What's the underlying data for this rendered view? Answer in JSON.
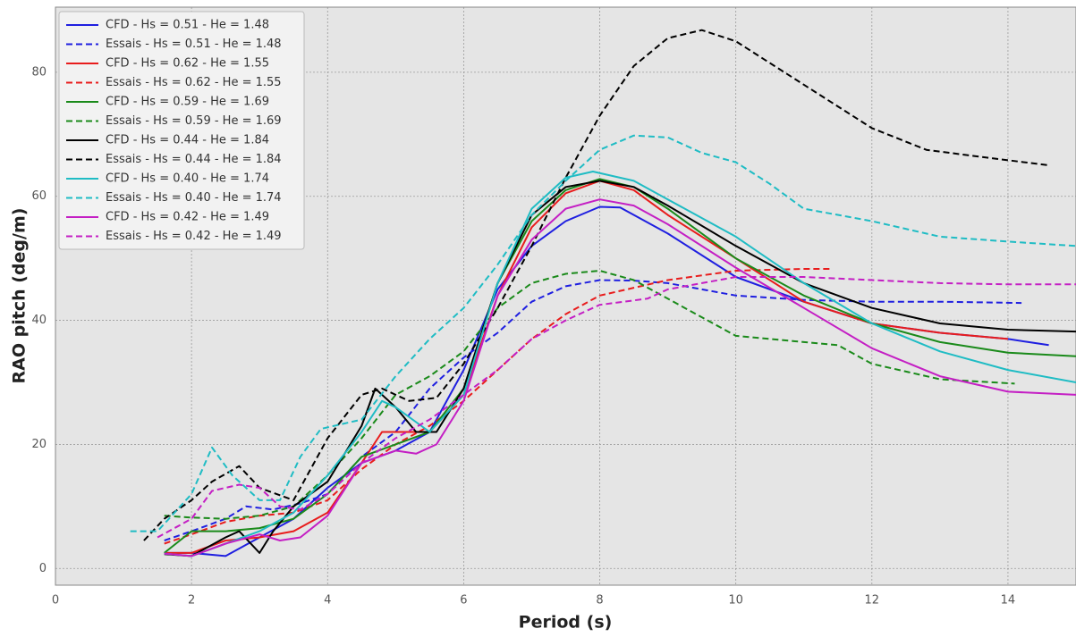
{
  "chart_data": {
    "type": "line",
    "xlabel": "Period (s)",
    "ylabel": "RAO pitch (deg/m)",
    "xlim": [
      0,
      15
    ],
    "ylim": [
      -2.7,
      90.5
    ],
    "xticks": [
      0,
      2,
      4,
      6,
      8,
      10,
      12,
      14
    ],
    "yticks": [
      0,
      20,
      40,
      60,
      80
    ],
    "grid": true,
    "legend": "upper left",
    "series": [
      {
        "name": "CFD - Hs = 0.51 - He = 1.48",
        "color": "#1f1fe0",
        "dashed": false,
        "x": [
          1.6,
          2,
          2.5,
          3,
          3.5,
          4,
          4.5,
          5,
          5.5,
          6,
          6.5,
          7,
          7.5,
          8,
          8.3,
          9,
          10,
          11,
          12,
          13,
          14,
          14.6
        ],
        "values": [
          2.5,
          2.5,
          2,
          5,
          8,
          13,
          17,
          19,
          22,
          32,
          45,
          52,
          56,
          58.3,
          58.2,
          54,
          47,
          43,
          39.5,
          38,
          37,
          36
        ]
      },
      {
        "name": "Essais - Hs = 0.51 - He = 1.48",
        "color": "#1f1fe0",
        "dashed": true,
        "x": [
          1.6,
          2,
          2.5,
          2.8,
          3.2,
          3.6,
          4,
          4.5,
          5,
          5.5,
          6,
          6.5,
          7,
          7.5,
          8,
          8.5,
          9,
          10,
          11,
          12,
          13,
          14.2
        ],
        "values": [
          4.5,
          6,
          8,
          10,
          9.5,
          10.5,
          12,
          18,
          22,
          29,
          34,
          38,
          43,
          45.5,
          46.5,
          46.4,
          46,
          44,
          43.3,
          43,
          43,
          42.8
        ]
      },
      {
        "name": "CFD - Hs = 0.62 - He = 1.55",
        "color": "#e81c1c",
        "dashed": false,
        "x": [
          1.6,
          2,
          2.5,
          3,
          3.5,
          4,
          4.5,
          4.8,
          5.2,
          5.5,
          6,
          6.5,
          7,
          7.5,
          8,
          8.5,
          9,
          10,
          11,
          12,
          13,
          14
        ],
        "values": [
          2.5,
          2.5,
          4.5,
          5,
          6,
          9,
          17,
          22,
          22,
          22,
          28,
          44,
          55,
          60.5,
          62.5,
          61,
          57,
          50,
          43,
          39.5,
          38,
          37
        ]
      },
      {
        "name": "Essais - Hs = 0.62 - He = 1.55",
        "color": "#e81c1c",
        "dashed": true,
        "x": [
          1.6,
          2,
          2.5,
          3,
          3.5,
          4,
          4.5,
          5,
          5.5,
          6,
          6.5,
          7,
          7.5,
          8,
          9,
          10,
          11,
          11.4
        ],
        "values": [
          4,
          5.5,
          7.5,
          8.5,
          9,
          11,
          16,
          20,
          23,
          27,
          32,
          37,
          41,
          44,
          46.5,
          48,
          48.3,
          48.3
        ]
      },
      {
        "name": "CFD - Hs = 0.59 - He = 1.69",
        "color": "#1a8a1a",
        "dashed": false,
        "x": [
          1.6,
          2,
          2.5,
          3,
          3.5,
          4,
          4.5,
          5,
          5.5,
          6,
          6.5,
          7,
          7.5,
          8,
          8.5,
          9,
          10,
          11,
          12,
          13,
          14,
          15
        ],
        "values": [
          2.5,
          6,
          6,
          6.5,
          8,
          12,
          18,
          20,
          22,
          29,
          46,
          56,
          61,
          62.8,
          61.5,
          58,
          50,
          44,
          39.5,
          36.5,
          34.8,
          34.2
        ]
      },
      {
        "name": "Essais - Hs = 0.59 - He = 1.69",
        "color": "#1a8a1a",
        "dashed": true,
        "x": [
          1.6,
          2,
          2.5,
          3,
          3.5,
          4,
          4.5,
          5,
          5.5,
          6,
          6.5,
          7,
          7.5,
          8,
          8.5,
          9,
          10,
          11,
          11.5,
          12,
          13,
          14.1
        ],
        "values": [
          8.5,
          8.2,
          8,
          8.5,
          10,
          15,
          21,
          28,
          31,
          35,
          42,
          46,
          47.5,
          48,
          46.5,
          43.5,
          37.5,
          36.5,
          36,
          33,
          30.5,
          29.8
        ]
      },
      {
        "name": "CFD - Hs = 0.44 - He = 1.84",
        "color": "#000000",
        "dashed": false,
        "x": [
          1.6,
          2,
          2.5,
          2.7,
          3,
          3.2,
          3.5,
          4,
          4.5,
          4.7,
          5,
          5.3,
          5.6,
          6,
          6.5,
          7,
          7.5,
          8,
          8.5,
          9,
          10,
          11,
          12,
          13,
          14,
          15
        ],
        "values": [
          2.3,
          2,
          5,
          6,
          2.5,
          6,
          10,
          14,
          23,
          29,
          26,
          22,
          22,
          29,
          46,
          57,
          61.5,
          62.5,
          61.5,
          58.5,
          52,
          46,
          42,
          39.5,
          38.5,
          38.2
        ]
      },
      {
        "name": "Essais - Hs = 0.44 - He = 1.84",
        "color": "#000000",
        "dashed": true,
        "x": [
          1.3,
          1.6,
          2,
          2.3,
          2.7,
          3,
          3.5,
          4,
          4.5,
          4.8,
          5.2,
          5.6,
          6,
          6.5,
          7,
          7.5,
          8,
          8.5,
          9,
          9.5,
          10,
          11,
          12,
          12.8,
          13.5,
          14.6
        ],
        "values": [
          4.5,
          8,
          11,
          14,
          16.5,
          13,
          11,
          21,
          28,
          29,
          27,
          27.5,
          33,
          42,
          52,
          63,
          73,
          81,
          85.5,
          86.8,
          85,
          78,
          71,
          67.5,
          66.5,
          65
        ]
      },
      {
        "name": "CFD - Hs = 0.40 - He = 1.74",
        "color": "#1fbcc4",
        "dashed": false,
        "x": [
          1.6,
          2,
          2.5,
          3,
          3.5,
          4,
          4.5,
          4.8,
          5,
          5.5,
          6,
          6.5,
          7,
          7.5,
          7.9,
          8.5,
          9,
          10,
          11,
          12,
          13,
          14,
          15
        ],
        "values": [
          2.4,
          2,
          4,
          6,
          9,
          15,
          22,
          27,
          26,
          22,
          28,
          46,
          58,
          63,
          64,
          62.5,
          59.5,
          53.5,
          46,
          39.5,
          35,
          32,
          30
        ]
      },
      {
        "name": "Essais - Hs = 0.40 - He = 1.74",
        "color": "#1fbcc4",
        "dashed": true,
        "x": [
          1.1,
          1.5,
          2,
          2.3,
          2.6,
          3,
          3.3,
          3.6,
          3.9,
          4.5,
          5,
          5.5,
          6,
          6.5,
          7,
          7.5,
          8,
          8.5,
          9,
          9.5,
          10,
          10.5,
          11,
          12,
          13,
          14,
          15
        ],
        "values": [
          6,
          6,
          12,
          19.5,
          15,
          11,
          11,
          18,
          22.5,
          24,
          31,
          37,
          42,
          49,
          57,
          62.5,
          67.5,
          69.8,
          69.5,
          67,
          65.5,
          62,
          58,
          56,
          53.5,
          52.7,
          52
        ]
      },
      {
        "name": "CFD - Hs = 0.42 - He = 1.49",
        "color": "#c41fc4",
        "dashed": false,
        "x": [
          1.6,
          2,
          2.5,
          3,
          3.3,
          3.6,
          4,
          4.5,
          5,
          5.3,
          5.6,
          6,
          6.5,
          7,
          7.5,
          8,
          8.5,
          9,
          10,
          11,
          12,
          13,
          14,
          15
        ],
        "values": [
          2.4,
          2,
          4,
          5.5,
          4.5,
          5,
          8.5,
          17,
          19,
          18.5,
          20,
          27,
          44,
          53,
          58,
          59.5,
          58.5,
          55.5,
          48.5,
          42,
          35.5,
          31,
          28.5,
          28
        ]
      },
      {
        "name": "Essais - Hs = 0.42 - He = 1.49",
        "color": "#c41fc4",
        "dashed": true,
        "x": [
          1.5,
          2,
          2.3,
          2.7,
          3,
          3.3,
          3.6,
          4,
          4.5,
          5,
          5.5,
          6,
          6.5,
          7,
          7.5,
          8,
          8.7,
          9,
          10,
          11,
          12,
          13,
          14,
          15
        ],
        "values": [
          5,
          8,
          12.5,
          13.5,
          13,
          10,
          9.5,
          12,
          17,
          21,
          24,
          28,
          32,
          37,
          40,
          42.5,
          43.5,
          45,
          47,
          47,
          46.5,
          46,
          45.8,
          45.8
        ]
      }
    ]
  }
}
